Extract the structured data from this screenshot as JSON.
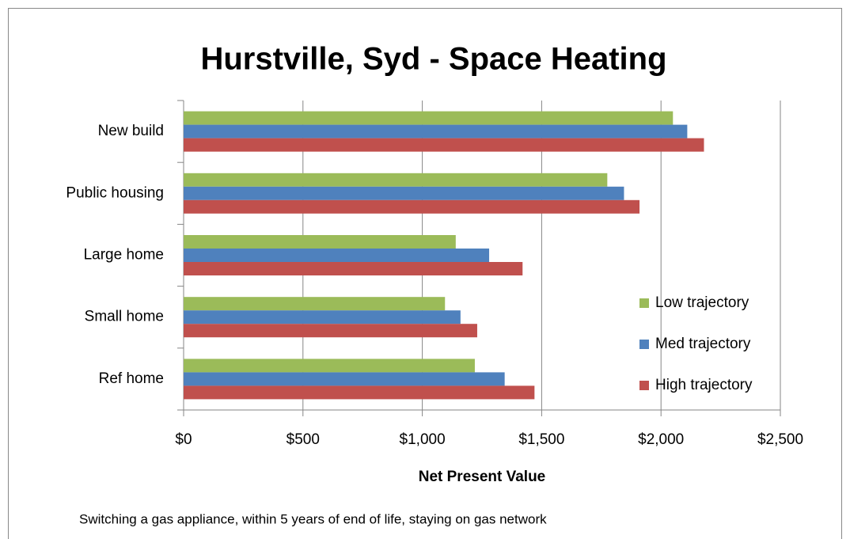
{
  "chart_data": {
    "type": "hbar",
    "title": "Hurstville, Syd - Space Heating",
    "xlabel": "Net Present Value",
    "note": "Switching a gas appliance, within 5 years of end of life, staying on gas network",
    "categories": [
      "New build",
      "Public housing",
      "Large home",
      "Small home",
      "Ref home"
    ],
    "series": [
      {
        "name": "Low trajectory",
        "color": "#9bbb59",
        "values": [
          2050,
          1775,
          1140,
          1095,
          1220
        ]
      },
      {
        "name": "Med trajectory",
        "color": "#4f81bd",
        "values": [
          2110,
          1845,
          1280,
          1160,
          1345
        ]
      },
      {
        "name": "High trajectory",
        "color": "#c0504d",
        "values": [
          2180,
          1910,
          1420,
          1230,
          1470
        ]
      }
    ],
    "xlim": [
      0,
      2500
    ],
    "xticks": [
      {
        "value": 0,
        "label": "$0"
      },
      {
        "value": 500,
        "label": "$500"
      },
      {
        "value": 1000,
        "label": "$1,000"
      },
      {
        "value": 1500,
        "label": "$1,500"
      },
      {
        "value": 2000,
        "label": "$2,000"
      },
      {
        "value": 2500,
        "label": "$2,500"
      }
    ],
    "grid": true,
    "legend": "right"
  }
}
